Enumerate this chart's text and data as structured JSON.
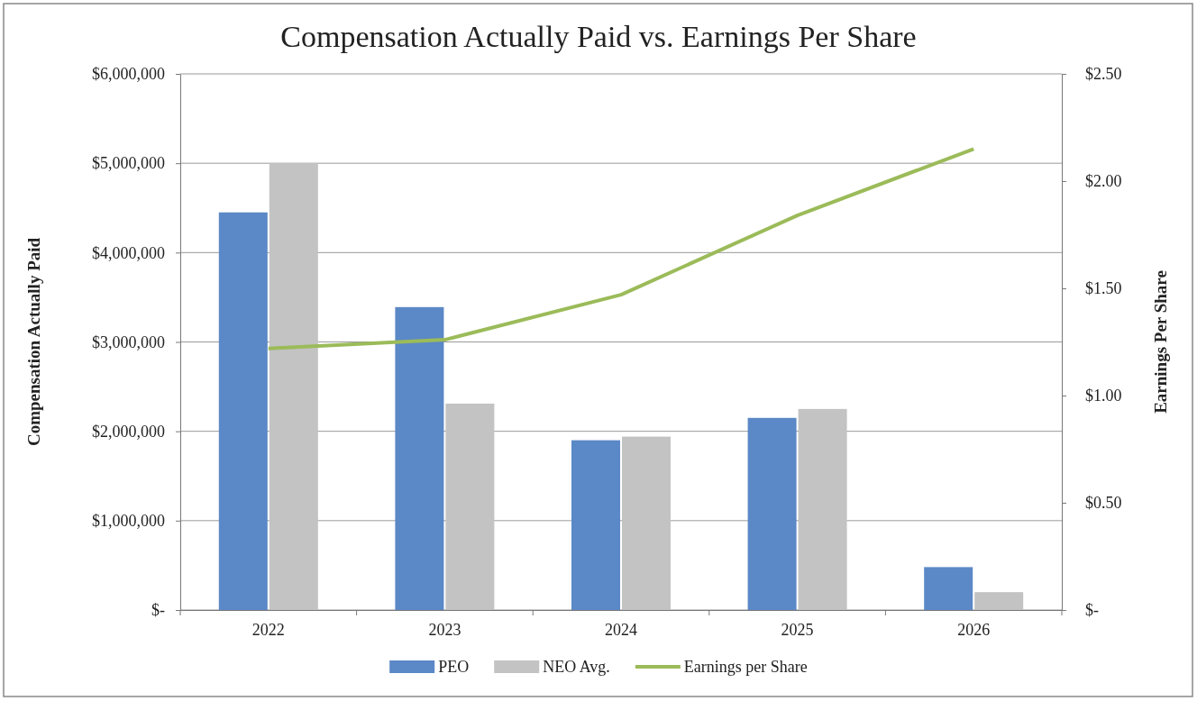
{
  "chart_data": {
    "type": "bar",
    "title": "Compensation Actually Paid vs. Earnings Per Share",
    "ylabel": "Compensation Actually Paid",
    "y2label": "Earnings Per Share",
    "categories": [
      "2022",
      "2023",
      "2024",
      "2025",
      "2026"
    ],
    "series": [
      {
        "name": "PEO",
        "color": "#5b88c6",
        "values": [
          4450000,
          3390000,
          1900000,
          2150000,
          480000
        ]
      },
      {
        "name": "NEO Avg.",
        "color": "#c3c3c3",
        "values": [
          5000000,
          2310000,
          1940000,
          2250000,
          200000
        ]
      },
      {
        "name": "Earnings per Share",
        "type": "line",
        "axis": "y2",
        "color": "#9bbb59",
        "values": [
          1.22,
          1.26,
          1.47,
          1.84,
          2.15
        ]
      }
    ],
    "ylim": [
      0,
      6000000
    ],
    "yticks": [
      {
        "value": 0,
        "label": "$-"
      },
      {
        "value": 1000000,
        "label": "$1,000,000"
      },
      {
        "value": 2000000,
        "label": "$2,000,000"
      },
      {
        "value": 3000000,
        "label": "$3,000,000"
      },
      {
        "value": 4000000,
        "label": "$4,000,000"
      },
      {
        "value": 5000000,
        "label": "$5,000,000"
      },
      {
        "value": 6000000,
        "label": "$6,000,000"
      }
    ],
    "y2lim": [
      0,
      2.5
    ],
    "y2ticks": [
      {
        "value": 0,
        "label": "$-"
      },
      {
        "value": 0.5,
        "label": "$0.50"
      },
      {
        "value": 1,
        "label": "$1.00"
      },
      {
        "value": 1.5,
        "label": "$1.50"
      },
      {
        "value": 2,
        "label": "$2.00"
      },
      {
        "value": 2.5,
        "label": "$2.50"
      }
    ],
    "grid": "y",
    "legend": "bottom",
    "marker": "none"
  }
}
